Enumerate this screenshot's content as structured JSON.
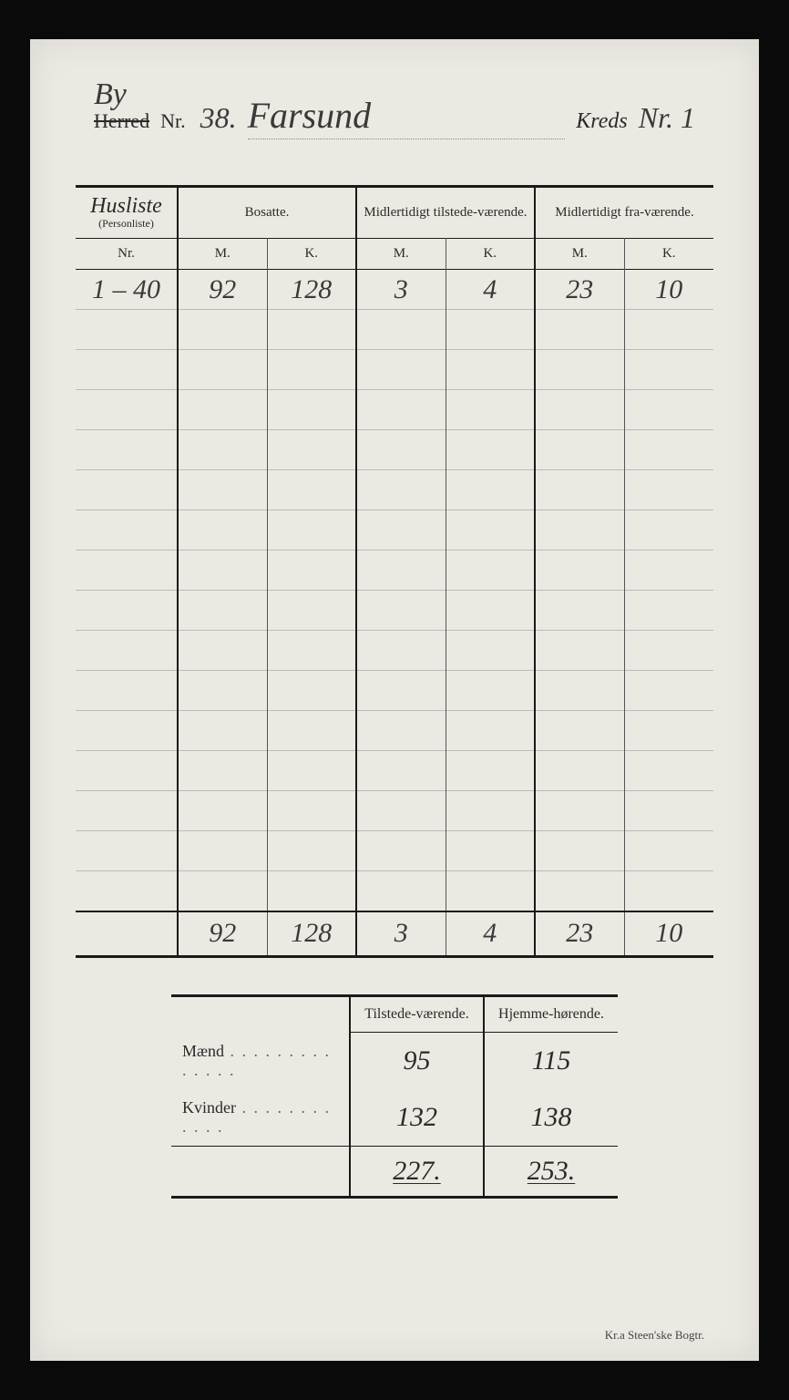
{
  "header": {
    "by_annotation": "By",
    "herred_label": "Herred",
    "nr_label": "Nr.",
    "nr_value": "38.",
    "place_name": "Farsund",
    "kreds_label": "Kreds",
    "kreds_value": "Nr. 1"
  },
  "main_table": {
    "head": {
      "col1_script": "Husliste",
      "col1_sub": "(Personliste)",
      "group_bosatte": "Bosatte.",
      "group_tilstede": "Midlertidigt tilstede-værende.",
      "group_fra": "Midlertidigt fra-værende.",
      "sub_nr": "Nr.",
      "sub_m": "M.",
      "sub_k": "K."
    },
    "rows": [
      {
        "nr": "1 – 40",
        "bm": "92",
        "bk": "128",
        "tm": "3",
        "tk": "4",
        "fm": "23",
        "fk": "10"
      },
      {
        "nr": "",
        "bm": "",
        "bk": "",
        "tm": "",
        "tk": "",
        "fm": "",
        "fk": ""
      },
      {
        "nr": "",
        "bm": "",
        "bk": "",
        "tm": "",
        "tk": "",
        "fm": "",
        "fk": ""
      },
      {
        "nr": "",
        "bm": "",
        "bk": "",
        "tm": "",
        "tk": "",
        "fm": "",
        "fk": ""
      },
      {
        "nr": "",
        "bm": "",
        "bk": "",
        "tm": "",
        "tk": "",
        "fm": "",
        "fk": ""
      },
      {
        "nr": "",
        "bm": "",
        "bk": "",
        "tm": "",
        "tk": "",
        "fm": "",
        "fk": ""
      },
      {
        "nr": "",
        "bm": "",
        "bk": "",
        "tm": "",
        "tk": "",
        "fm": "",
        "fk": ""
      },
      {
        "nr": "",
        "bm": "",
        "bk": "",
        "tm": "",
        "tk": "",
        "fm": "",
        "fk": ""
      },
      {
        "nr": "",
        "bm": "",
        "bk": "",
        "tm": "",
        "tk": "",
        "fm": "",
        "fk": ""
      },
      {
        "nr": "",
        "bm": "",
        "bk": "",
        "tm": "",
        "tk": "",
        "fm": "",
        "fk": ""
      },
      {
        "nr": "",
        "bm": "",
        "bk": "",
        "tm": "",
        "tk": "",
        "fm": "",
        "fk": ""
      },
      {
        "nr": "",
        "bm": "",
        "bk": "",
        "tm": "",
        "tk": "",
        "fm": "",
        "fk": ""
      },
      {
        "nr": "",
        "bm": "",
        "bk": "",
        "tm": "",
        "tk": "",
        "fm": "",
        "fk": ""
      },
      {
        "nr": "",
        "bm": "",
        "bk": "",
        "tm": "",
        "tk": "",
        "fm": "",
        "fk": ""
      },
      {
        "nr": "",
        "bm": "",
        "bk": "",
        "tm": "",
        "tk": "",
        "fm": "",
        "fk": ""
      },
      {
        "nr": "",
        "bm": "",
        "bk": "",
        "tm": "",
        "tk": "",
        "fm": "",
        "fk": ""
      }
    ],
    "totals": {
      "nr": "",
      "bm": "92",
      "bk": "128",
      "tm": "3",
      "tk": "4",
      "fm": "23",
      "fk": "10"
    }
  },
  "summary": {
    "head": {
      "blank": "",
      "tilstede": "Tilstede-værende.",
      "hjemme": "Hjemme-hørende."
    },
    "rows": [
      {
        "label": "Mænd",
        "dots": " . . . . . . . . . . . . . .",
        "tilstede": "95",
        "hjemme": "115"
      },
      {
        "label": "Kvinder",
        "dots": " . . . . . . . . . . . .",
        "tilstede": "132",
        "hjemme": "138"
      }
    ],
    "totals": {
      "tilstede": "227.",
      "hjemme": "253."
    }
  },
  "footer": {
    "printer": "Kr.a   Steen'ske Bogtr."
  },
  "style": {
    "page_bg": "#ebe9e2",
    "ink": "#2a2a2a",
    "handwriting": "#3a3a3a",
    "rule_heavy": "#1a1a1a",
    "rule_light": "#bbb"
  }
}
